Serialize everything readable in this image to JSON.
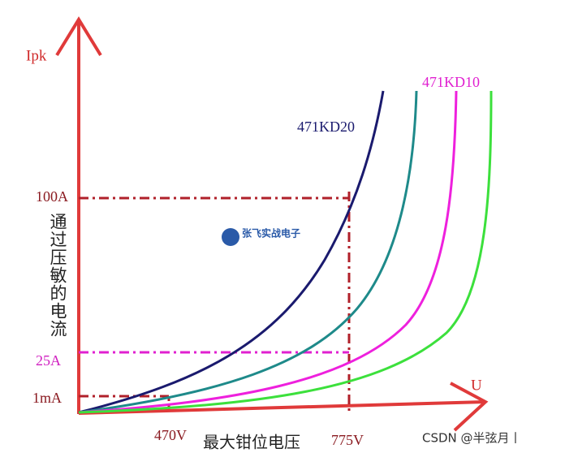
{
  "axes": {
    "y_label": "Ipk",
    "x_label": "U",
    "y_title": "通过压敏的电流",
    "x_title": "最大钳位电压"
  },
  "y_marks": [
    "100A",
    "25A",
    "1mA"
  ],
  "x_marks": [
    "470V",
    "775V"
  ],
  "curves": [
    "471KD20",
    "471KD10"
  ],
  "logo": {
    "title": "张飞实战电子"
  },
  "watermark": "CSDN @半弦月丨"
}
